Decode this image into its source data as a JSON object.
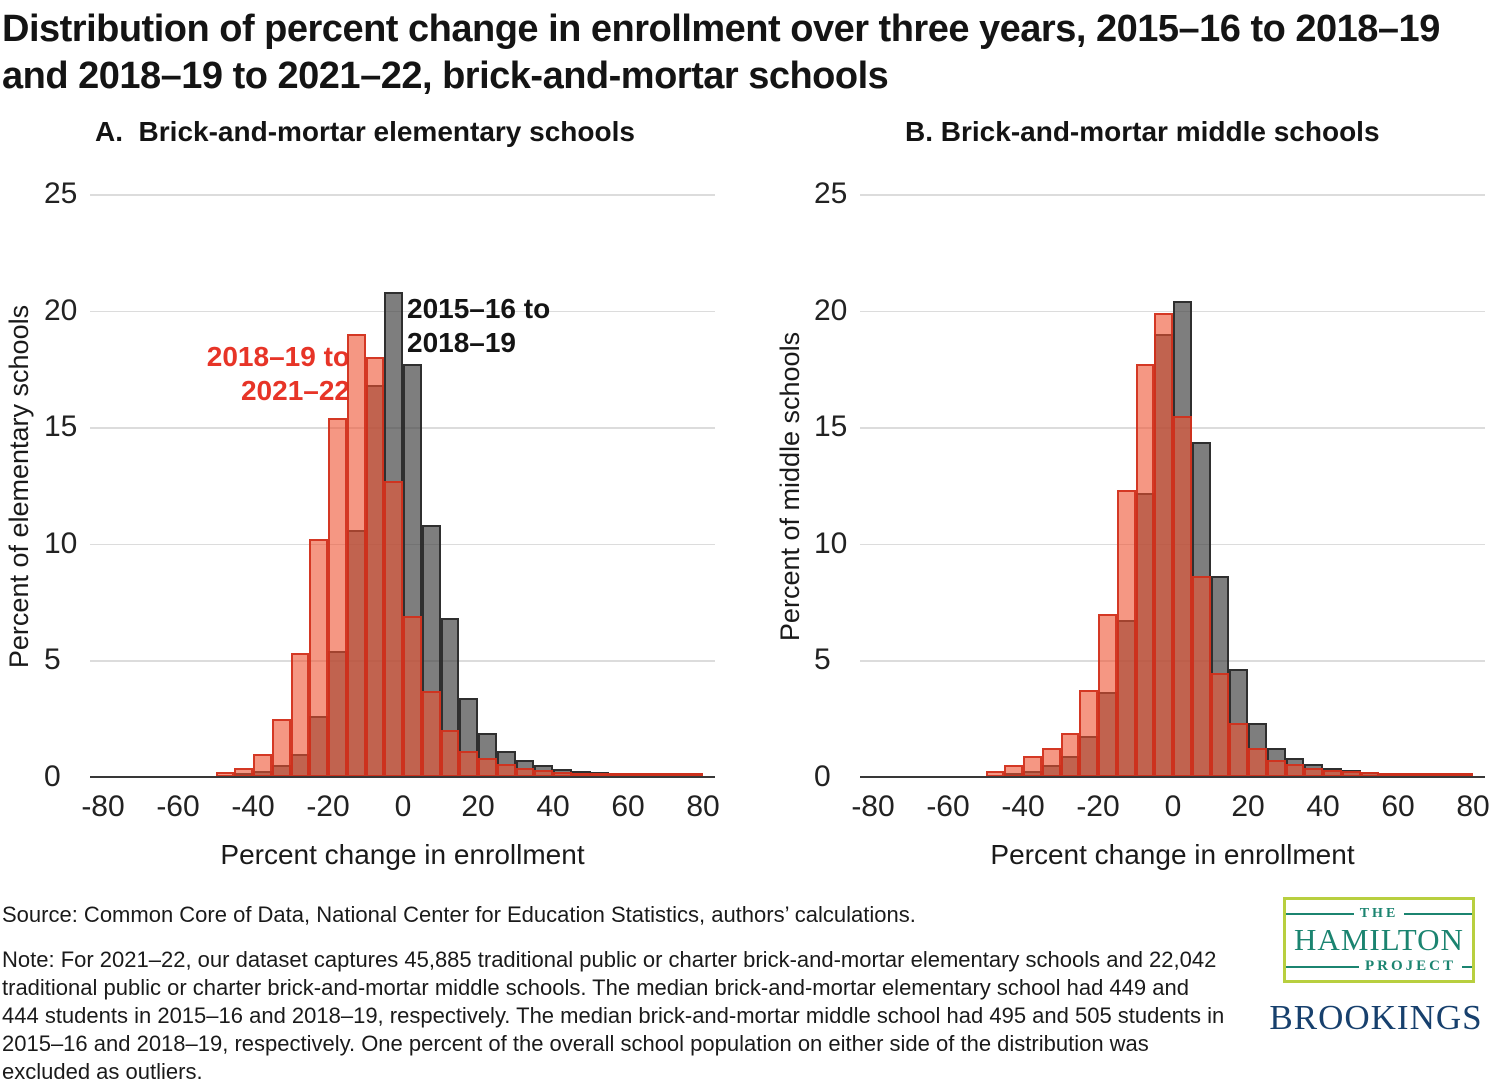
{
  "title": "Distribution of percent change in enrollment over three years, 2015–16 to 2018–19 and 2018–19 to 2021–22, brick-and-mortar schools",
  "annotations": {
    "gray": [
      "2015–16 to",
      "2018–19"
    ],
    "red": [
      "2018–19 to",
      "2021–22"
    ]
  },
  "colors": {
    "gray_series_fill": "#7f7f7f",
    "gray_series_border": "#3a3a3a",
    "red_series_fill": "#f89b82",
    "red_series_border": "#d0301c",
    "overlap": "#ad6452",
    "annotation_red_text": "#e73427",
    "gridline": "#dcdcdc",
    "axis": "#383838",
    "hamilton_green": "#1b8470",
    "hamilton_box_border": "#b8cf3f",
    "brookings_navy": "#17406d"
  },
  "chart_data": [
    {
      "type": "bar",
      "title": "A.  Brick-and-mortar elementary schools",
      "xlabel": "Percent change in enrollment",
      "ylabel": "Percent of elementary schools",
      "xlim": [
        -80,
        80
      ],
      "ylim": [
        0,
        25
      ],
      "x_ticks": [
        -80,
        -60,
        -40,
        -20,
        0,
        20,
        40,
        60,
        80
      ],
      "y_ticks": [
        0,
        5,
        10,
        15,
        20,
        25
      ],
      "grid": true,
      "legend_position": "in-plot text annotations beside peak bars (panel A only)",
      "bin_width": 5,
      "bin_starts": [
        -50,
        -45,
        -40,
        -35,
        -30,
        -25,
        -20,
        -15,
        -10,
        -5,
        0,
        5,
        10,
        15,
        20,
        25,
        30,
        35,
        40,
        45,
        50,
        55,
        60,
        65,
        70,
        75
      ],
      "series": [
        {
          "name": "2015–16 to 2018–19",
          "role": "gray",
          "values": [
            0,
            0.1,
            0.25,
            0.5,
            1.0,
            2.6,
            5.4,
            10.6,
            16.8,
            20.8,
            17.7,
            10.8,
            6.8,
            3.4,
            1.9,
            1.1,
            0.75,
            0.5,
            0.35,
            0.25,
            0.2,
            0.15,
            0.12,
            0.1,
            0.08,
            0.05
          ]
        },
        {
          "name": "2018–19 to 2021–22",
          "role": "red",
          "values": [
            0.2,
            0.4,
            1.0,
            2.5,
            5.3,
            10.2,
            15.4,
            19.0,
            18.0,
            12.7,
            6.9,
            3.7,
            2.0,
            1.1,
            0.8,
            0.55,
            0.4,
            0.3,
            0.22,
            0.18,
            0.15,
            0.12,
            0.1,
            0.1,
            0.1,
            0.12
          ]
        }
      ]
    },
    {
      "type": "bar",
      "title": "B. Brick-and-mortar middle schools",
      "xlabel": "Percent change in enrollment",
      "ylabel": "Percent of middle schools",
      "xlim": [
        -80,
        80
      ],
      "ylim": [
        0,
        25
      ],
      "x_ticks": [
        -80,
        -60,
        -40,
        -20,
        0,
        20,
        40,
        60,
        80
      ],
      "y_ticks": [
        0,
        5,
        10,
        15,
        20,
        25
      ],
      "grid": true,
      "legend_position": "none",
      "bin_width": 5,
      "bin_starts": [
        -50,
        -45,
        -40,
        -35,
        -30,
        -25,
        -20,
        -15,
        -10,
        -5,
        0,
        5,
        10,
        15,
        20,
        25,
        30,
        35,
        40,
        45,
        50,
        55,
        60,
        65,
        70,
        75
      ],
      "series": [
        {
          "name": "2015–16 to 2018–19",
          "role": "gray",
          "values": [
            0,
            0.1,
            0.25,
            0.5,
            0.9,
            1.75,
            3.65,
            6.75,
            12.2,
            19.0,
            20.4,
            14.35,
            8.6,
            4.65,
            2.3,
            1.25,
            0.8,
            0.55,
            0.4,
            0.3,
            0.22,
            0.18,
            0.15,
            0.12,
            0.08,
            0.05
          ]
        },
        {
          "name": "2018–19 to 2021–22",
          "role": "red",
          "values": [
            0.25,
            0.5,
            0.9,
            1.25,
            1.9,
            3.75,
            7.0,
            12.3,
            17.7,
            19.9,
            15.5,
            8.6,
            4.45,
            2.3,
            1.25,
            0.75,
            0.55,
            0.4,
            0.3,
            0.25,
            0.2,
            0.15,
            0.12,
            0.1,
            0.1,
            0.12
          ]
        }
      ]
    }
  ],
  "footer": {
    "source": "Source: Common Core of Data, National Center for Education Statistics, authors’ calculations.",
    "note": "Note: For 2021–22, our dataset captures 45,885 traditional public or charter brick-and-mortar elementary schools and 22,042 traditional public or charter brick-and-mortar middle schools. The median brick-and-mortar elementary school had 449 and 444 students in 2015–16 and 2018–19, respectively. The median brick-and-mortar middle school had 495 and 505 students in 2015–16 and 2018–19, respectively. One percent of the overall school population on either side of the distribution was excluded as outliers."
  },
  "logos": {
    "hamilton": {
      "the": "THE",
      "name": "HAMILTON",
      "project": "PROJECT"
    },
    "brookings": "BROOKINGS"
  }
}
